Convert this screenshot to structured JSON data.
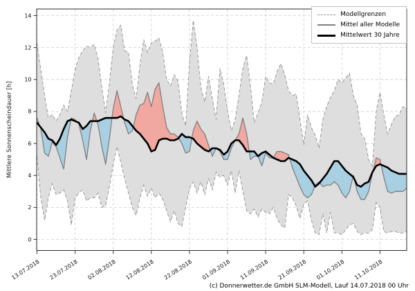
{
  "footer": {
    "caption": "(c) Donnerwetter.de GmbH SLM-Modell, Lauf 14.07.2018 00 Uhr"
  },
  "chart_data": {
    "type": "line",
    "title": "",
    "xlabel": "",
    "ylabel": "Mittlere Sonnenscheindauer [h]",
    "ylim": [
      -0.7,
      14.4
    ],
    "yticks": [
      0,
      2,
      4,
      6,
      8,
      10,
      12,
      14
    ],
    "xtick_labels": [
      "13.07.2018",
      "23.07.2018",
      "02.08.2018",
      "12.08.2018",
      "22.08.2018",
      "01.09.2018",
      "11.09.2018",
      "21.09.2018",
      "01.10.2018",
      "11.10.2018"
    ],
    "xtick_days": [
      0,
      10,
      20,
      30,
      40,
      50,
      60,
      70,
      80,
      90
    ],
    "days_total": 97,
    "grid": true,
    "legend": {
      "position": "top-right",
      "entries": [
        "Modellgrenzen",
        "Mittel aller Modelle",
        "Mittelwert 30 Jahre"
      ]
    },
    "colors": {
      "envelope_fill": "#dedede",
      "bound_line": "#909090",
      "model_mean_line": "#7f7f7f",
      "climate_line": "#000000",
      "above_climate_fill": "#f0a8a0",
      "below_climate_fill": "#a8cfe2",
      "grid_line": "#cccccc",
      "spine": "#2a2a2a"
    },
    "series": [
      {
        "name": "Modellgrenzen oben",
        "style": "dashed",
        "values": [
          12.3,
          10.6,
          9.0,
          7.6,
          7.8,
          7.4,
          7.8,
          8.4,
          8.0,
          9.3,
          10.6,
          11.4,
          11.8,
          12.1,
          12.0,
          12.2,
          11.3,
          9.5,
          7.9,
          9.8,
          12.0,
          13.1,
          13.4,
          11.8,
          11.7,
          9.7,
          8.8,
          10.9,
          12.5,
          11.7,
          12.3,
          12.4,
          12.6,
          11.7,
          10.0,
          9.6,
          10.3,
          9.9,
          7.9,
          7.1,
          11.0,
          13.7,
          12.0,
          9.5,
          8.6,
          10.2,
          8.8,
          7.5,
          10.7,
          9.7,
          8.0,
          6.8,
          7.5,
          9.0,
          10.7,
          11.5,
          9.6,
          7.3,
          7.9,
          8.6,
          10.2,
          9.8,
          9.7,
          10.5,
          11.0,
          10.3,
          9.3,
          9.0,
          9.1,
          7.5,
          5.9,
          7.8,
          7.0,
          6.5,
          5.7,
          7.5,
          8.3,
          8.9,
          9.3,
          10.0,
          9.8,
          10.1,
          10.4,
          9.0,
          8.4,
          6.6,
          6.3,
          5.0,
          4.6,
          8.0,
          9.2,
          7.8,
          6.6,
          7.2,
          7.7,
          7.8,
          8.3,
          8.2
        ]
      },
      {
        "name": "Modellgrenzen unten",
        "style": "dashed",
        "values": [
          5.2,
          2.6,
          1.2,
          2.6,
          3.5,
          2.8,
          2.9,
          3.1,
          2.4,
          0.9,
          2.6,
          2.9,
          3.1,
          2.4,
          2.6,
          2.6,
          2.9,
          2.0,
          2.1,
          3.3,
          4.7,
          5.8,
          4.8,
          3.8,
          2.9,
          2.0,
          1.5,
          2.6,
          3.4,
          2.7,
          3.2,
          2.6,
          2.9,
          2.5,
          1.8,
          1.1,
          1.8,
          1.0,
          0.8,
          2.0,
          3.2,
          3.6,
          2.9,
          3.6,
          2.8,
          3.8,
          3.1,
          4.2,
          3.9,
          4.0,
          3.4,
          4.3,
          2.9,
          4.3,
          3.0,
          1.8,
          1.6,
          1.9,
          1.4,
          1.9,
          1.7,
          1.6,
          2.0,
          1.3,
          0.9,
          0.7,
          2.8,
          2.6,
          2.1,
          1.3,
          2.2,
          2.4,
          1.2,
          0.4,
          0.3,
          1.6,
          0.4,
          1.7,
          0.4,
          0.4,
          0.3,
          0.6,
          0.9,
          1.0,
          0.5,
          0.3,
          0.4,
          0.4,
          0.6,
          2.3,
          2.0,
          0.5,
          0.4,
          0.5,
          0.5,
          0.4,
          0.4,
          0.5
        ]
      },
      {
        "name": "Mittel aller Modelle",
        "style": "solid",
        "values": [
          7.6,
          6.9,
          5.4,
          5.2,
          6.1,
          5.8,
          5.1,
          4.4,
          6.4,
          7.6,
          7.5,
          7.2,
          6.2,
          5.0,
          6.8,
          7.9,
          7.2,
          5.8,
          4.7,
          6.3,
          8.2,
          9.3,
          8.3,
          7.3,
          6.6,
          6.8,
          7.8,
          8.4,
          8.5,
          9.2,
          8.3,
          9.4,
          9.8,
          8.3,
          7.0,
          6.6,
          6.6,
          6.4,
          6.0,
          5.4,
          5.5,
          6.8,
          7.4,
          6.9,
          6.6,
          5.9,
          5.2,
          5.7,
          5.5,
          5.0,
          5.0,
          5.7,
          6.2,
          6.6,
          7.6,
          6.6,
          5.0,
          5.2,
          5.2,
          4.6,
          5.4,
          5.1,
          5.1,
          5.5,
          5.5,
          5.4,
          5.3,
          4.5,
          3.9,
          3.3,
          2.8,
          2.6,
          2.8,
          3.4,
          3.6,
          3.3,
          3.4,
          3.4,
          3.6,
          3.4,
          2.9,
          2.6,
          3.0,
          4.0,
          3.0,
          2.5,
          2.5,
          3.0,
          4.1,
          5.1,
          5.0,
          3.9,
          3.0,
          2.9,
          3.0,
          3.0,
          3.0,
          3.2
        ]
      },
      {
        "name": "Mittelwert 30 Jahre",
        "style": "solid-bold",
        "values": [
          7.3,
          7.0,
          6.7,
          6.3,
          6.2,
          5.9,
          6.3,
          6.9,
          7.4,
          7.5,
          7.4,
          7.3,
          6.9,
          7.1,
          7.4,
          7.4,
          7.4,
          7.5,
          7.6,
          7.6,
          7.6,
          7.6,
          7.7,
          7.5,
          7.4,
          7.1,
          6.8,
          6.6,
          6.3,
          6.0,
          5.5,
          5.6,
          6.2,
          6.3,
          6.3,
          6.2,
          6.2,
          6.3,
          6.6,
          6.4,
          6.4,
          6.3,
          6.0,
          5.8,
          5.6,
          5.5,
          5.7,
          5.7,
          5.6,
          5.3,
          5.5,
          6.0,
          6.2,
          6.2,
          5.9,
          5.5,
          5.5,
          5.5,
          5.2,
          5.4,
          5.5,
          5.3,
          5.1,
          5.0,
          4.9,
          4.9,
          5.1,
          5.0,
          4.9,
          4.7,
          4.3,
          4.0,
          3.7,
          3.3,
          3.5,
          3.8,
          4.1,
          4.5,
          4.9,
          4.9,
          4.6,
          4.3,
          4.1,
          3.9,
          3.4,
          3.3,
          3.5,
          3.6,
          4.2,
          4.6,
          4.7,
          4.6,
          4.5,
          4.3,
          4.2,
          4.1,
          4.1,
          4.1
        ]
      }
    ]
  }
}
